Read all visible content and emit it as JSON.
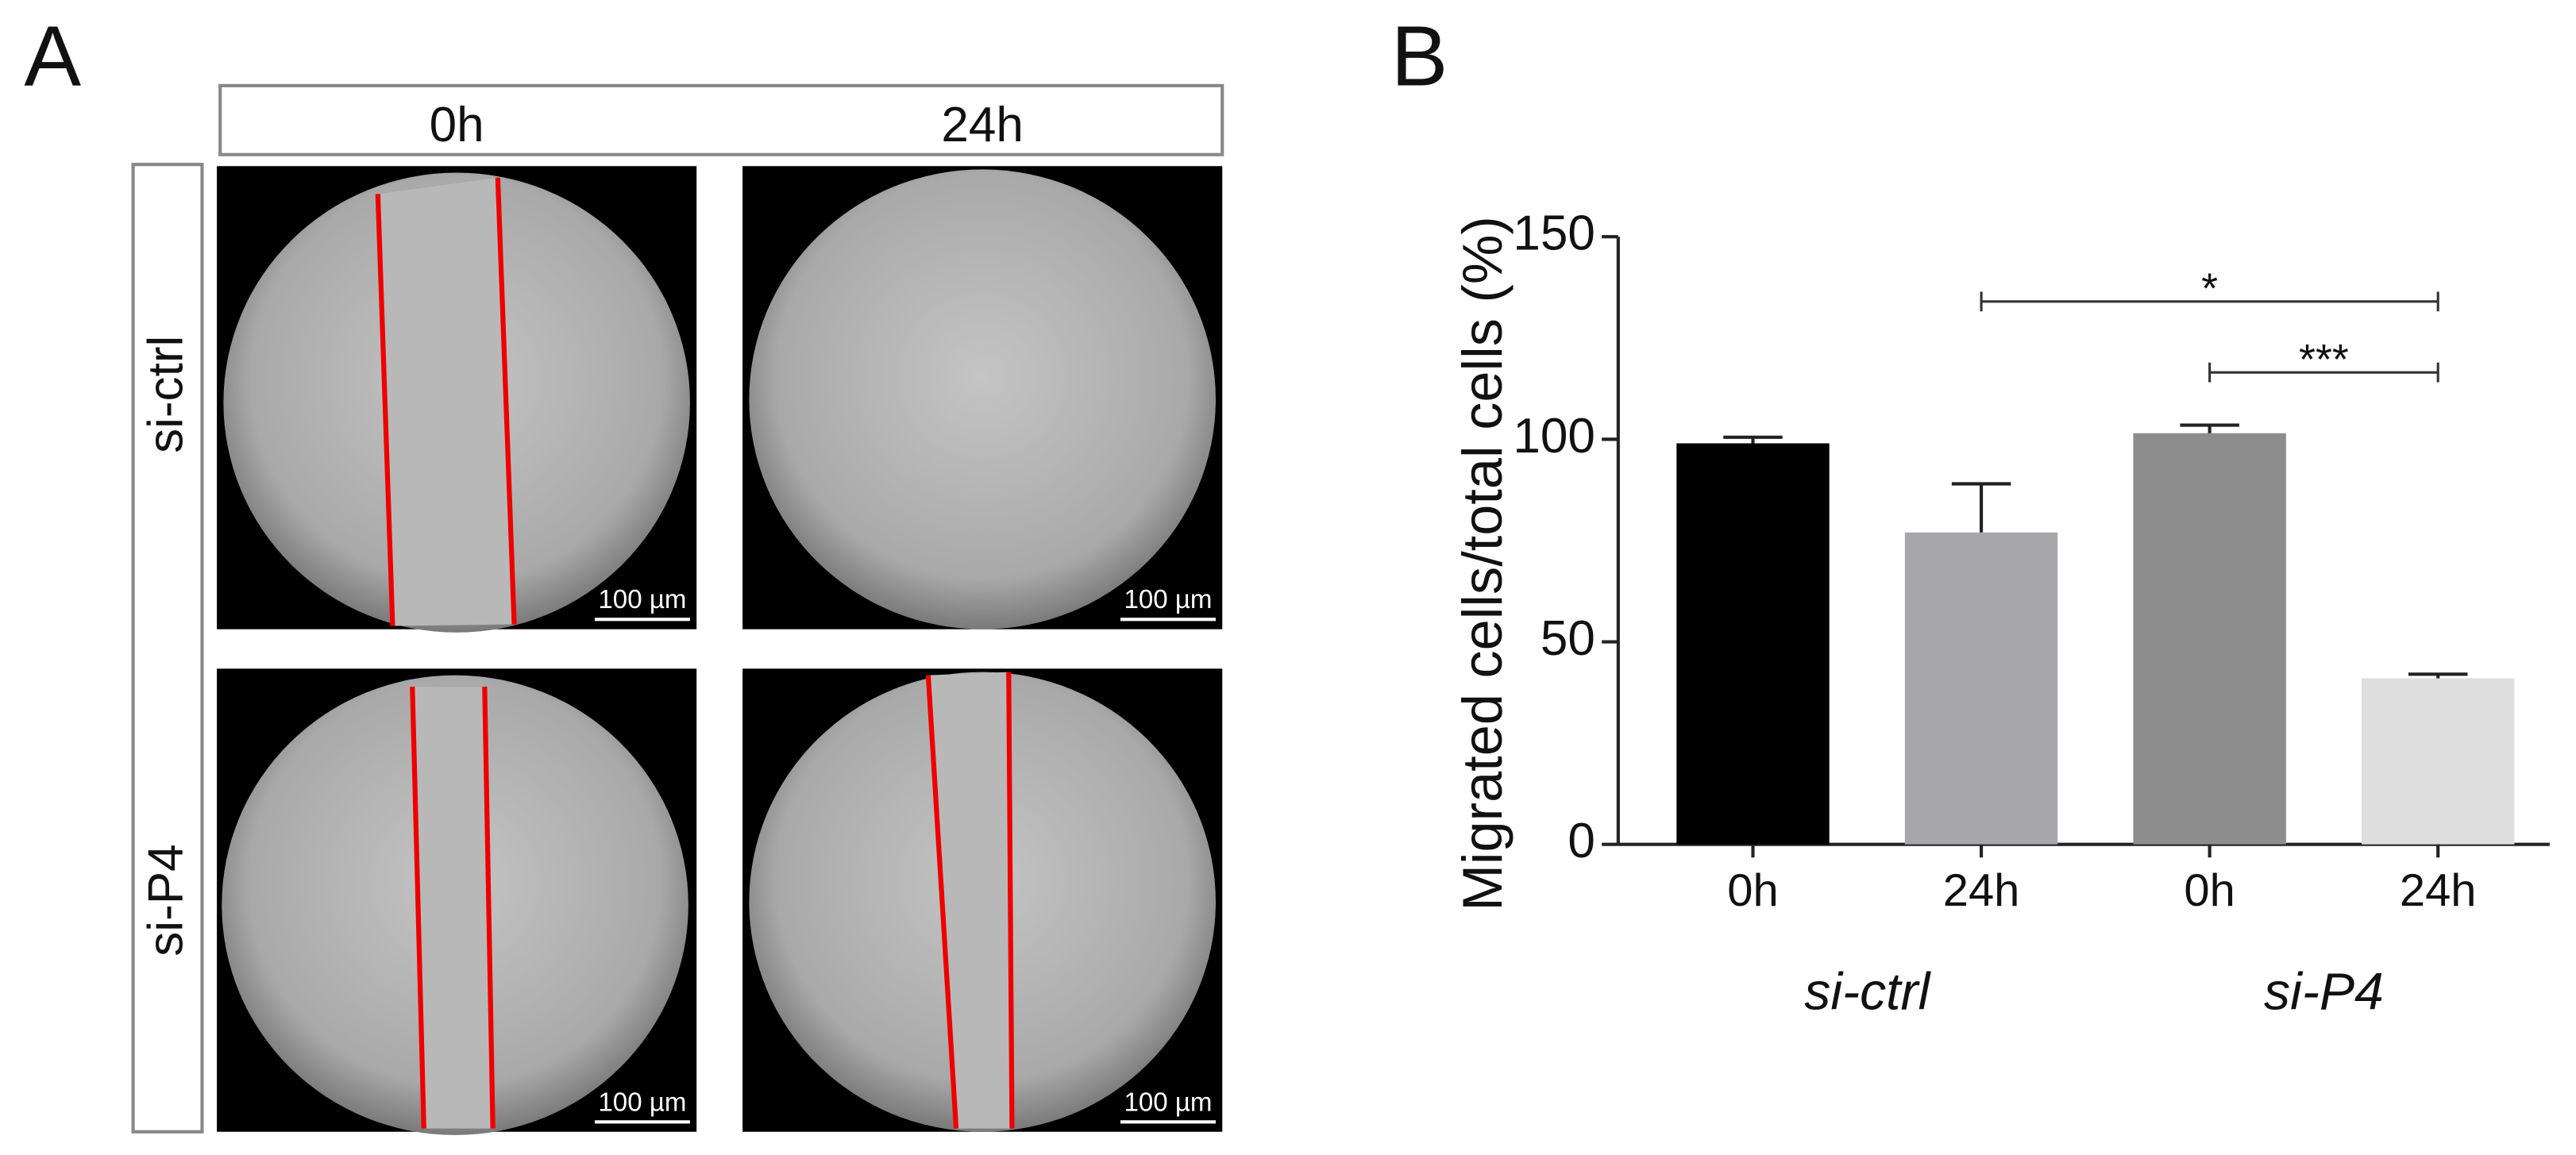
{
  "panel_a": {
    "label": "A",
    "columns": [
      "0h",
      "24h"
    ],
    "rows": [
      "si-ctrl",
      "si-P4"
    ],
    "scale_bars": [
      "100 µm",
      "100 µm",
      "100 µm",
      "100 µm"
    ]
  },
  "chart_data": {
    "type": "bar",
    "panel_label": "B",
    "y_label": "Migrated cells/total cells (%)",
    "categories": [
      "0h",
      "24h",
      "0h",
      "24h"
    ],
    "groups": [
      "si-ctrl",
      "si-P4"
    ],
    "values": [
      99,
      77,
      101.5,
      41
    ],
    "errors": [
      1.5,
      12,
      2,
      1
    ],
    "colors": [
      "#000000",
      "#a7a7ab",
      "#8d8d8d",
      "#dedede"
    ],
    "ylim": [
      0,
      150
    ],
    "yticks": [
      0,
      50,
      100,
      150
    ],
    "annotations": [
      {
        "text": "*",
        "between": [
          1,
          3
        ],
        "y": 134
      },
      {
        "text": "***",
        "between": [
          2,
          3
        ],
        "y": 116.5
      }
    ]
  }
}
